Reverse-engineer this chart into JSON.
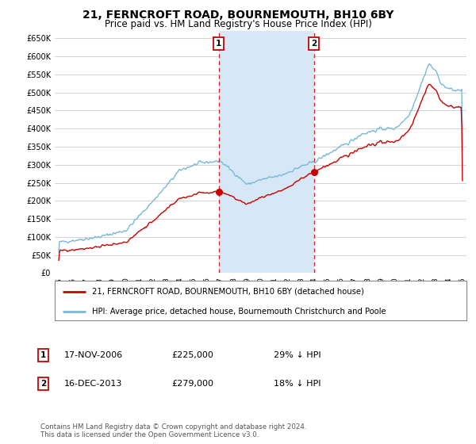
{
  "title": "21, FERNCROFT ROAD, BOURNEMOUTH, BH10 6BY",
  "subtitle": "Price paid vs. HM Land Registry's House Price Index (HPI)",
  "title_fontsize": 10,
  "subtitle_fontsize": 8.5,
  "ylabel_ticks": [
    "£0",
    "£50K",
    "£100K",
    "£150K",
    "£200K",
    "£250K",
    "£300K",
    "£350K",
    "£400K",
    "£450K",
    "£500K",
    "£550K",
    "£600K",
    "£650K"
  ],
  "ytick_values": [
    0,
    50000,
    100000,
    150000,
    200000,
    250000,
    300000,
    350000,
    400000,
    450000,
    500000,
    550000,
    600000,
    650000
  ],
  "ylim": [
    0,
    670000
  ],
  "xlim_start": 1994.7,
  "xlim_end": 2025.3,
  "background_color": "#ffffff",
  "plot_bg_color": "#ffffff",
  "hpi_line_color": "#7ab8d9",
  "price_line_color": "#cc0000",
  "grid_color": "#cccccc",
  "shade_color": "#d6e8f5",
  "purchase1_x": 2006.88,
  "purchase1_y": 225000,
  "purchase1_label": "1",
  "purchase2_x": 2013.96,
  "purchase2_y": 279000,
  "purchase2_label": "2",
  "legend_line1": "21, FERNCROFT ROAD, BOURNEMOUTH, BH10 6BY (detached house)",
  "legend_line2": "HPI: Average price, detached house, Bournemouth Christchurch and Poole",
  "annotation1_date": "17-NOV-2006",
  "annotation1_price": "£225,000",
  "annotation1_hpi": "29% ↓ HPI",
  "annotation2_date": "16-DEC-2013",
  "annotation2_price": "£279,000",
  "annotation2_hpi": "18% ↓ HPI",
  "footer": "Contains HM Land Registry data © Crown copyright and database right 2024.\nThis data is licensed under the Open Government Licence v3.0.",
  "xtick_years": [
    1995,
    1996,
    1997,
    1998,
    1999,
    2000,
    2001,
    2002,
    2003,
    2004,
    2005,
    2006,
    2007,
    2008,
    2009,
    2010,
    2011,
    2012,
    2013,
    2014,
    2015,
    2016,
    2017,
    2018,
    2019,
    2020,
    2021,
    2022,
    2023,
    2024,
    2025
  ]
}
